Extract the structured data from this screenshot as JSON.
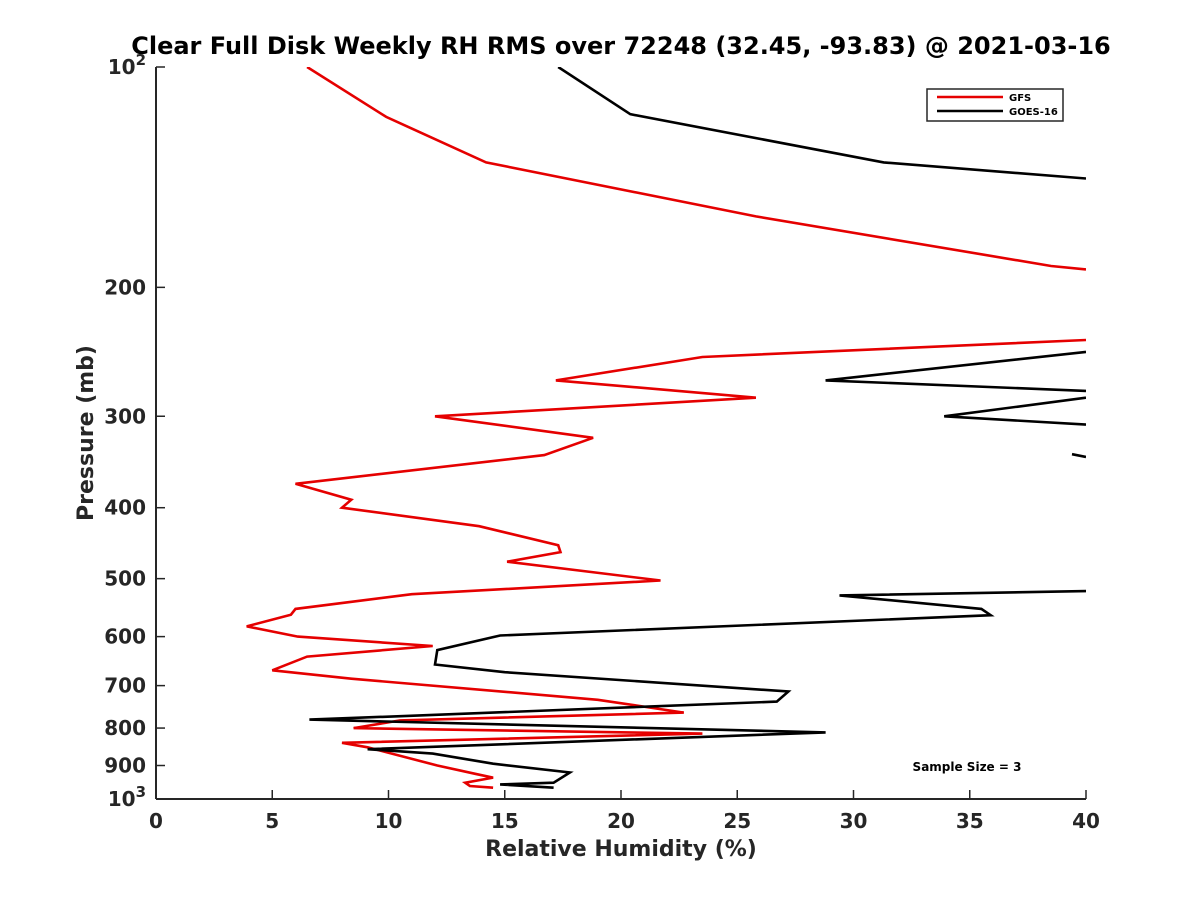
{
  "chart_data": {
    "type": "line",
    "title": "Clear Full Disk Weekly RH RMS over 72248 (32.45, -93.83) @ 2021-03-16",
    "xlabel": "Relative Humidity (%)",
    "ylabel": "Pressure (mb)",
    "xlim": [
      0,
      40
    ],
    "ylim": [
      100,
      1000
    ],
    "yscale": "log",
    "y_reversed": true,
    "grid": false,
    "legend_position": "top-right",
    "xticks": [
      0,
      5,
      10,
      15,
      20,
      25,
      30,
      35,
      40
    ],
    "xtick_labels": [
      "0",
      "5",
      "10",
      "15",
      "20",
      "25",
      "30",
      "35",
      "40"
    ],
    "yticks": [
      100,
      200,
      300,
      400,
      500,
      600,
      700,
      800,
      900,
      1000
    ],
    "ytick_labels": [
      {
        "base": "10",
        "sup": "2"
      },
      {
        "base": "200",
        "sup": ""
      },
      {
        "base": "300",
        "sup": ""
      },
      {
        "base": "400",
        "sup": ""
      },
      {
        "base": "500",
        "sup": ""
      },
      {
        "base": "600",
        "sup": ""
      },
      {
        "base": "700",
        "sup": ""
      },
      {
        "base": "800",
        "sup": ""
      },
      {
        "base": "900",
        "sup": ""
      },
      {
        "base": "10",
        "sup": "3"
      }
    ],
    "annotation": "Sample Size = 3",
    "series": [
      {
        "name": "GFS",
        "color": "#e50000",
        "segments": [
          [
            [
              6.5,
              100
            ],
            [
              9.9,
              117
            ],
            [
              14.2,
              135
            ],
            [
              25.8,
              160
            ],
            [
              38.5,
              187
            ],
            [
              40,
              189
            ]
          ],
          [
            [
              40,
              236
            ],
            [
              23.5,
              249
            ],
            [
              17.2,
              268
            ],
            [
              25.8,
              283
            ],
            [
              12.0,
              300
            ],
            [
              18.8,
              321
            ],
            [
              16.7,
              339
            ],
            [
              6.0,
              371
            ],
            [
              8.4,
              390
            ],
            [
              8.0,
              400
            ],
            [
              13.9,
              424
            ],
            [
              17.3,
              450
            ],
            [
              17.4,
              460
            ],
            [
              15.1,
              474
            ],
            [
              21.7,
              503
            ],
            [
              11.0,
              525
            ],
            [
              6.0,
              550
            ],
            [
              5.8,
              560
            ],
            [
              3.9,
              581
            ],
            [
              6.1,
              600
            ],
            [
              11.9,
              618
            ],
            [
              6.5,
              639
            ],
            [
              5.0,
              667
            ],
            [
              8.4,
              685
            ],
            [
              19.0,
              732
            ],
            [
              22.7,
              762
            ],
            [
              10.5,
              781
            ],
            [
              8.5,
              800
            ],
            [
              23.5,
              814
            ],
            [
              8.0,
              838
            ],
            [
              9.1,
              850
            ],
            [
              12.1,
              900
            ],
            [
              13.8,
              925
            ],
            [
              14.5,
              935
            ],
            [
              13.3,
              950
            ],
            [
              13.5,
              960
            ],
            [
              14.5,
              965
            ]
          ]
        ]
      },
      {
        "name": "GOES-16",
        "color": "#000000",
        "segments": [
          [
            [
              17.3,
              100
            ],
            [
              20.4,
              116
            ],
            [
              31.3,
              135
            ],
            [
              40,
              142
            ]
          ],
          [
            [
              40,
              245
            ],
            [
              28.8,
              268
            ],
            [
              40,
              277
            ]
          ],
          [
            [
              40,
              283
            ],
            [
              33.9,
              300
            ],
            [
              40,
              308
            ]
          ],
          [
            [
              39.4,
              338
            ],
            [
              40,
              341
            ]
          ],
          [
            [
              40,
              520
            ],
            [
              29.4,
              527
            ],
            [
              35.5,
              550
            ],
            [
              35.9,
              561
            ],
            [
              14.8,
              598
            ],
            [
              12.1,
              626
            ],
            [
              12.0,
              655
            ],
            [
              15.0,
              671
            ],
            [
              27.2,
              713
            ],
            [
              26.7,
              736
            ],
            [
              10.8,
              770
            ],
            [
              6.6,
              779
            ],
            [
              28.8,
              811
            ],
            [
              9.1,
              855
            ],
            [
              11.9,
              867
            ],
            [
              14.5,
              895
            ],
            [
              17.8,
              920
            ],
            [
              17.1,
              950
            ],
            [
              14.8,
              955
            ],
            [
              17.1,
              965
            ]
          ]
        ]
      }
    ]
  }
}
